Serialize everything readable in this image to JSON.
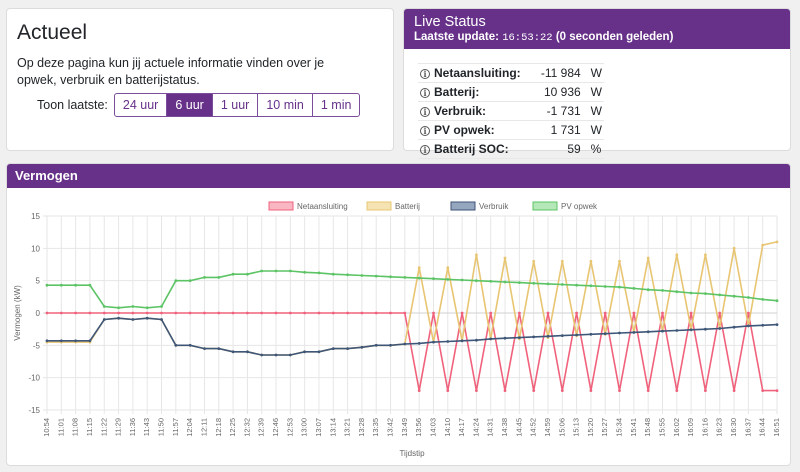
{
  "actueel": {
    "title": "Actueel",
    "description": "Op deze pagina kun jij actuele informatie vinden over je opwek, verbruik en batterijstatus.",
    "toon_label": "Toon laatste:",
    "ranges": [
      "24 uur",
      "6 uur",
      "1 uur",
      "10 min",
      "1 min"
    ],
    "active_range": "6 uur"
  },
  "live": {
    "title": "Live Status",
    "update_label": "Laatste update:",
    "update_time": "16:53:22",
    "update_ago": "(0 seconden geleden)",
    "rows": [
      {
        "label": "Netaansluiting:",
        "value": "-11 984",
        "unit": "W"
      },
      {
        "label": "Batterij:",
        "value": "10 936",
        "unit": "W"
      },
      {
        "label": "Verbruik:",
        "value": "-1 731",
        "unit": "W"
      },
      {
        "label": "PV opwek:",
        "value": "1 731",
        "unit": "W"
      },
      {
        "label": "Batterij SOC:",
        "value": "59",
        "unit": "%"
      }
    ]
  },
  "vermogen": {
    "title": "Vermogen"
  },
  "chart_data": {
    "type": "line",
    "xlabel": "Tijdstip",
    "ylabel": "Vermogen (kW)",
    "ylim": [
      -15,
      15
    ],
    "yticks": [
      -15,
      -10,
      -5,
      0,
      5,
      10,
      15
    ],
    "grid": true,
    "legend_position": "top",
    "x_ticks": [
      "10:54",
      "11:01",
      "11:08",
      "11:15",
      "11:22",
      "11:29",
      "11:36",
      "11:43",
      "11:50",
      "11:57",
      "12:04",
      "12:11",
      "12:18",
      "12:25",
      "12:32",
      "12:39",
      "12:46",
      "12:53",
      "13:00",
      "13:07",
      "13:14",
      "13:21",
      "13:28",
      "13:35",
      "13:42",
      "13:49",
      "13:56",
      "14:03",
      "14:10",
      "14:17",
      "14:24",
      "14:31",
      "14:38",
      "14:45",
      "14:52",
      "14:59",
      "15:06",
      "15:13",
      "15:20",
      "15:27",
      "15:34",
      "15:41",
      "15:48",
      "15:55",
      "16:02",
      "16:09",
      "16:16",
      "16:23",
      "16:30",
      "16:37",
      "16:44",
      "16:51"
    ],
    "series": [
      {
        "name": "Netaansluiting",
        "color": "#f0627c",
        "fill": "#f9b6c3",
        "values": [
          0,
          0,
          0,
          0,
          0,
          0,
          0,
          0,
          0,
          0,
          0,
          0,
          0,
          0,
          0,
          0,
          0,
          0,
          0,
          0,
          0,
          0,
          0,
          0,
          0,
          0,
          -12,
          0,
          -12,
          0,
          -12,
          0,
          -12,
          0,
          -12,
          0,
          -12,
          0,
          -12,
          0,
          -12,
          0,
          -12,
          0,
          -12,
          0,
          -12,
          0,
          -12,
          0,
          -12,
          -12
        ]
      },
      {
        "name": "Batterij",
        "color": "#e8c572",
        "fill": "#f6e3b3",
        "values": [
          -4.5,
          -4.5,
          -4.5,
          -4.5,
          -1,
          -0.8,
          -1,
          -0.8,
          -1,
          -5,
          -5,
          -5.5,
          -5.5,
          -6,
          -6,
          -6.5,
          -6.5,
          -6.5,
          -6,
          -6,
          -5.5,
          -5.5,
          -5.3,
          -5,
          -5,
          -4.8,
          7,
          -4.5,
          7,
          -4.3,
          9,
          -4,
          8.5,
          -4,
          8,
          -3.8,
          8,
          -3.5,
          8,
          -3.3,
          8,
          -3,
          8.5,
          -2.8,
          9,
          -2.5,
          9,
          -2.3,
          10,
          -2,
          10.5,
          11
        ]
      },
      {
        "name": "Verbruik",
        "color": "#3e5678",
        "fill": "#95a7bf",
        "values": [
          -4.3,
          -4.3,
          -4.3,
          -4.3,
          -1,
          -0.8,
          -1,
          -0.8,
          -1,
          -5,
          -5,
          -5.5,
          -5.5,
          -6,
          -6,
          -6.5,
          -6.5,
          -6.5,
          -6,
          -6,
          -5.5,
          -5.5,
          -5.3,
          -5,
          -5,
          -4.8,
          -4.7,
          -4.5,
          -4.4,
          -4.3,
          -4.2,
          -4,
          -3.9,
          -3.8,
          -3.7,
          -3.6,
          -3.5,
          -3.4,
          -3.3,
          -3.2,
          -3.1,
          -3,
          -2.9,
          -2.8,
          -2.7,
          -2.6,
          -2.5,
          -2.4,
          -2.2,
          -2,
          -1.9,
          -1.8
        ]
      },
      {
        "name": "PV opwek",
        "color": "#5cc465",
        "fill": "#b5e8b8",
        "values": [
          4.3,
          4.3,
          4.3,
          4.3,
          1,
          0.8,
          1,
          0.8,
          1,
          5,
          5,
          5.5,
          5.5,
          6,
          6,
          6.5,
          6.5,
          6.5,
          6.3,
          6.2,
          6,
          5.9,
          5.8,
          5.7,
          5.6,
          5.5,
          5.4,
          5.3,
          5.2,
          5.1,
          5,
          4.9,
          4.8,
          4.7,
          4.6,
          4.5,
          4.4,
          4.3,
          4.2,
          4.1,
          4,
          3.8,
          3.6,
          3.5,
          3.3,
          3.1,
          3,
          2.8,
          2.6,
          2.4,
          2.1,
          1.9
        ]
      }
    ]
  }
}
